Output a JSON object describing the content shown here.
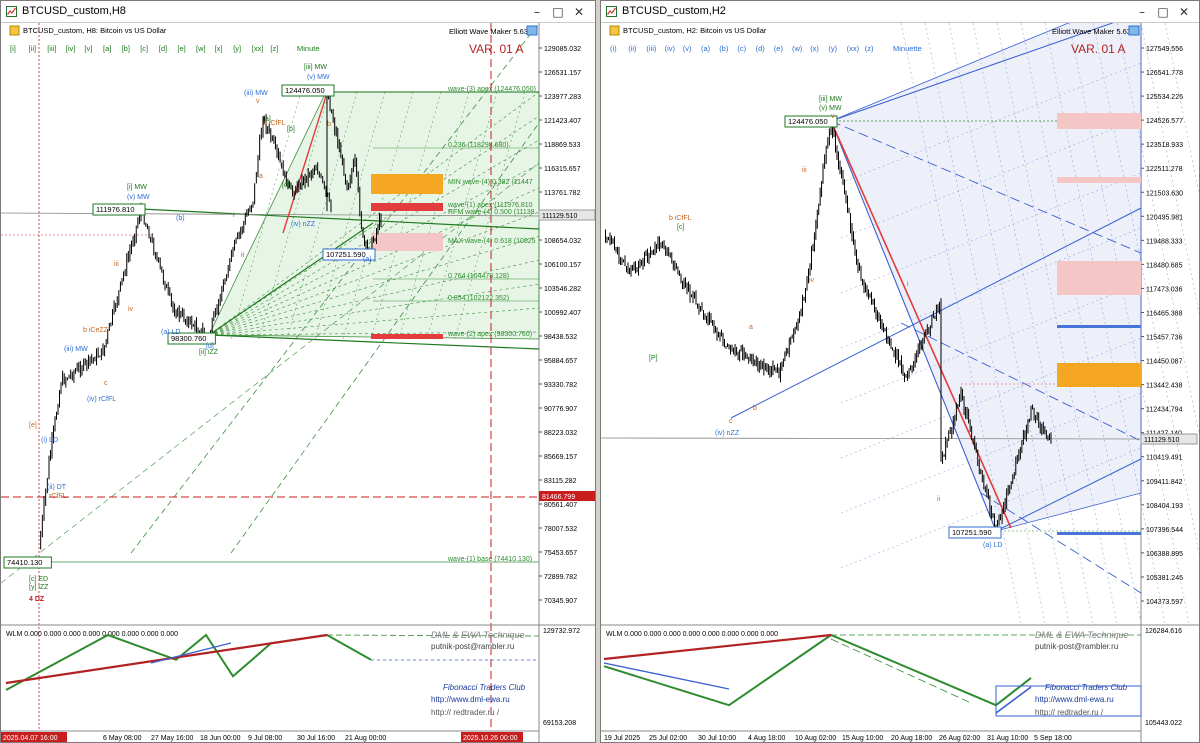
{
  "left_window": {
    "title": "BTCUSD_custom,H8",
    "symbol_line": "BTCUSD_custom, H8:  Bitcoin vs US Dollar",
    "wave_buttons": [
      "[i]",
      "[ii]",
      "[iii]",
      "[iv]",
      "[v]",
      "[a]",
      "[b]",
      "[c]",
      "[d]",
      "[e]",
      "[w]",
      "[x]",
      "[y]",
      "[xx]",
      "[z]"
    ],
    "degree": "Minute",
    "ewm_label": "Elliott Wave Maker 5.63",
    "var_label": "VAR. 01 A",
    "price_ticks": [
      "129085.032",
      "126531.157",
      "123977.283",
      "121423.407",
      "118869.533",
      "116315.657",
      "113761.782",
      "111207.908",
      "108654.032",
      "106100.157",
      "103546.282",
      "100992.407",
      "98438.532",
      "95884.657",
      "93330.782",
      "90776.907",
      "88223.032",
      "85669.157",
      "83115.282",
      "80561.407",
      "78007.532",
      "75453.657",
      "72899.782",
      "70345.907"
    ],
    "oscillator_ticks": [
      "129732.972",
      "69153.208"
    ],
    "time_ticks": [
      "6 May 08:00",
      "27 May 16:00",
      "18 Jun 00:00",
      "9 Jul 08:00",
      "30 Jul 16:00",
      "21 Aug 00:00"
    ],
    "time_marker_left": "2025.04.07 16:00",
    "time_marker_right": "2025.10.26 00:00",
    "current_price": "111129.510",
    "red_level": "81466.799",
    "boxed_prices": [
      "124476.050",
      "111976.810",
      "107251.590",
      "98300.760",
      "74410.130"
    ],
    "fib_labels": [
      "wave-(3) apex (124476.050)",
      "0.236 (118298.680)",
      "MIN wave-(4) 0.382 (11447",
      "wave-(1) apex (111976.810",
      "RFM wave-(4) 0.500 (11138",
      "MAX wave-(4) 0.618 (10825",
      "0.764 (104478.128)",
      "0.854 (102122.352)",
      "wave-(2) apex (98300.760)",
      "wave-(1) base (74410.130)"
    ],
    "wave_labels": [
      "[iii] MW",
      "(v) MW",
      "(iii) MW",
      "b iCfFL",
      "[i] MW",
      "(v) MW",
      "(iv) nZZ",
      "(a)",
      "(b)",
      "b iCeZZ",
      "(iii) MW",
      "(iv) rCfFL",
      "(a) LD",
      "[ii] iZZ",
      "(i) LD",
      "(ii) DT",
      "rCfFL",
      "[c] ED",
      "[y] iZZ",
      "4 DZ",
      "iii",
      "iv",
      "v",
      "i",
      "ii",
      "a",
      "b",
      "c",
      "[a]",
      "[b]",
      "[c]",
      "[d]",
      "[e]"
    ],
    "wlm_label": "WLM 0.000 0.000 0.000 0.000 0.000 0.000 0.000 0.000",
    "footer_lines": [
      "DML & EWA Technique",
      "putnik-post@rambler.ru",
      "Fibonacci    Traders    Club",
      "http://www.dml-ewa.ru",
      "http://  redtrader.ru /"
    ]
  },
  "right_window": {
    "title": "BTCUSD_custom,H2",
    "symbol_line": "BTCUSD_custom, H2:  Bitcoin vs US Dollar",
    "wave_buttons": [
      "(i)",
      "(ii)",
      "(iii)",
      "(iv)",
      "(v)",
      "(a)",
      "(b)",
      "(c)",
      "(d)",
      "(e)",
      "(w)",
      "(x)",
      "(y)",
      "(xx)",
      "(z)"
    ],
    "degree": "Minuette",
    "ewm_label": "Elliott Wave Maker 5.63",
    "var_label": "VAR. 01 A",
    "price_ticks": [
      "127549.556",
      "126541.778",
      "125534.226",
      "124526.577",
      "123518.933",
      "122511.278",
      "121503.630",
      "120495.981",
      "119488.333",
      "118480.685",
      "117473.036",
      "116465.388",
      "115457.736",
      "114450.087",
      "113442.438",
      "112434.794",
      "111427.140",
      "110419.491",
      "109411.842",
      "108404.193",
      "107396.544",
      "106388.895",
      "105381.246",
      "104373.597"
    ],
    "oscillator_ticks": [
      "126284.616",
      "105443.022"
    ],
    "time_ticks": [
      "19 Jul 2025",
      "25 Jul 02:00",
      "30 Jul 10:00",
      "4 Aug 18:00",
      "10 Aug 02:00",
      "15 Aug 10:00",
      "20 Aug 18:00",
      "26 Aug 02:00",
      "31 Aug 10:00",
      "5 Sep 18:00"
    ],
    "current_price": "111129.510",
    "boxed_prices": [
      "124476.050",
      "107251.590"
    ],
    "wave_labels": [
      "[iii] MW",
      "(v) MW",
      "b iCfFL",
      "[c]",
      "[P]",
      "(iv) nZZ",
      "(a) LD",
      "iii",
      "iv",
      "v",
      "i",
      "ii",
      "c",
      "a",
      "b"
    ],
    "wlm_label": "WLM 0.000 0.000 0.000 0.000 0.000 0.000 0.000 0.000",
    "footer_lines": [
      "DML & EWA Technique",
      "putnik-post@rambler.ru",
      "Fibonacci    Traders    Club",
      "http://www.dml-ewa.ru",
      "http://  redtrader.ru /"
    ]
  },
  "chart_data": [
    {
      "type": "line",
      "chart": "H8 candlestick price with Elliott wave annotations",
      "x": [
        "2025-04-07",
        "2025-04-15",
        "2025-04-22",
        "2025-05-06",
        "2025-05-22",
        "2025-06-05",
        "2025-06-18",
        "2025-06-30",
        "2025-07-09",
        "2025-07-14",
        "2025-07-23",
        "2025-07-31",
        "2025-08-03",
        "2025-08-14",
        "2025-08-19",
        "2025-08-23",
        "2025-08-27",
        "2025-08-31",
        "2025-09-05"
      ],
      "series": [
        {
          "values": [
            75800,
            85000,
            93600,
            96800,
            111976,
            101300,
            98300,
            107600,
            113000,
            121800,
            113600,
            116500,
            112000,
            124476,
            114500,
            116900,
            108600,
            107251,
            111129
          ]
        }
      ],
      "ylim": [
        70345.907,
        129085.032
      ],
      "colors": {
        "candles": "#000000",
        "bullish_channel": "#1e7a1e",
        "fib_text": "#2e8b2e",
        "wave_label": "#2f6fd1",
        "orange_zone": "#f5a623",
        "pink_zone": "#f4c6c6",
        "red_zone": "#e23c3c"
      }
    },
    {
      "type": "line",
      "chart": "H2 candlestick price with Elliott wave annotations",
      "x": [
        "2025-07-19",
        "2025-07-22",
        "2025-07-25",
        "2025-07-27",
        "2025-07-30",
        "2025-08-04",
        "2025-08-08",
        "2025-08-10",
        "2025-08-13",
        "2025-08-14",
        "2025-08-17",
        "2025-08-20",
        "2025-08-23",
        "2025-08-26",
        "2025-08-28",
        "2025-08-31",
        "2025-09-02",
        "2025-09-05"
      ],
      "series": [
        {
          "values": [
            119800,
            118100,
            119400,
            117800,
            115000,
            113900,
            116500,
            119300,
            122500,
            124476,
            117800,
            113700,
            116900,
            110200,
            113100,
            107251,
            112300,
            111129
          ]
        }
      ],
      "ylim": [
        104373.597,
        127549.556
      ],
      "colors": {
        "candles": "#000000",
        "channel": "#3a5fd0",
        "trend": "#e23c3c",
        "orange_zone": "#f5a623",
        "pink_zone": "#f4c6c6",
        "blue_level": "#4a74d9"
      }
    },
    {
      "type": "line",
      "chart": "WLM oscillator (left)",
      "x": [
        "2025-04-07",
        "2025-05-06",
        "2025-05-27",
        "2025-06-05",
        "2025-06-18",
        "2025-07-09",
        "2025-08-14",
        "2025-08-31"
      ],
      "series": [
        {
          "values": [
            0,
            1,
            0.55,
            1,
            0.25,
            0.85,
            1,
            0.55
          ]
        }
      ],
      "colors": {
        "zigzag": "#2e8b2e",
        "trend": "#b22222",
        "projection": "#3a5fd0"
      }
    },
    {
      "type": "line",
      "chart": "WLM oscillator (right)",
      "x": [
        "2025-07-19",
        "2025-07-30",
        "2025-08-14",
        "2025-08-31",
        "2025-09-05"
      ],
      "series": [
        {
          "values": [
            0.6,
            0.1,
            1,
            0.1,
            0.45
          ]
        }
      ],
      "colors": {
        "zigzag": "#2e8b2e",
        "trend": "#b22222",
        "projection": "#3a5fd0"
      }
    }
  ]
}
